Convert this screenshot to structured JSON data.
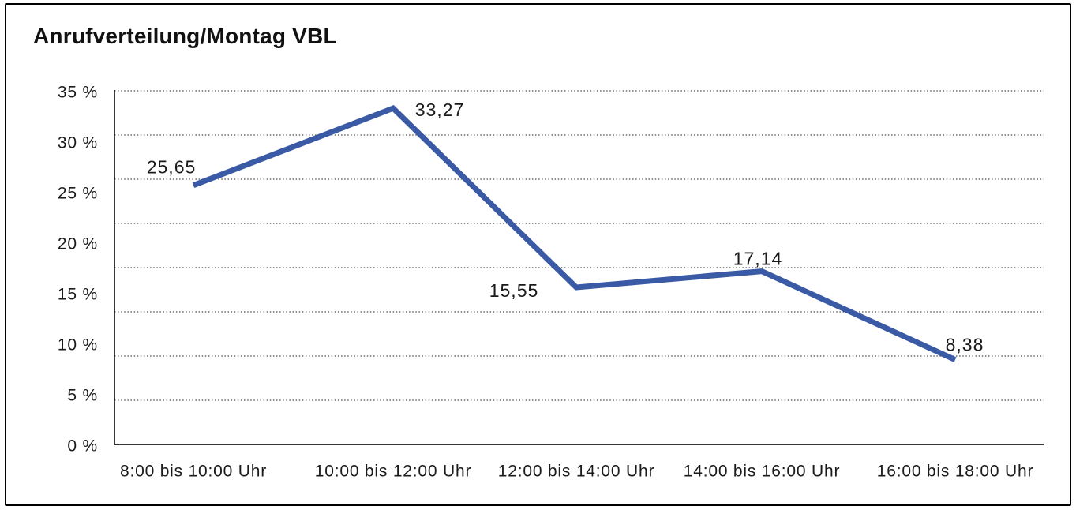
{
  "chart_data": {
    "type": "line",
    "title": "Anrufverteilung/Montag VBL",
    "categories": [
      "8:00 bis 10:00 Uhr",
      "10:00 bis 12:00 Uhr",
      "12:00 bis 14:00 Uhr",
      "14:00 bis 16:00 Uhr",
      "16:00 bis 18:00 Uhr"
    ],
    "values": [
      25.65,
      33.27,
      15.55,
      17.14,
      8.38
    ],
    "value_labels": [
      "25,65",
      "33,27",
      "15,55",
      "17,14",
      "8,38"
    ],
    "xlabel": "",
    "ylabel": "",
    "ylim": [
      0,
      35
    ],
    "y_tick_values": [
      35,
      30,
      25,
      20,
      15,
      10,
      5,
      0
    ],
    "y_tick_labels": [
      "35 %",
      "30 %",
      "25 %",
      "20 %",
      "15 %",
      "10 %",
      "5 %",
      "0 %"
    ],
    "grid": {
      "style": "dotted",
      "orientation": "horizontal",
      "bands": 8
    },
    "legend": "none",
    "colors": {
      "line": "#3A5AA5",
      "axis": "#1a1a1a",
      "grid": "#4a4a4a",
      "text": "#1a1a1a",
      "background": "#ffffff",
      "frame_border": "#000000"
    }
  }
}
